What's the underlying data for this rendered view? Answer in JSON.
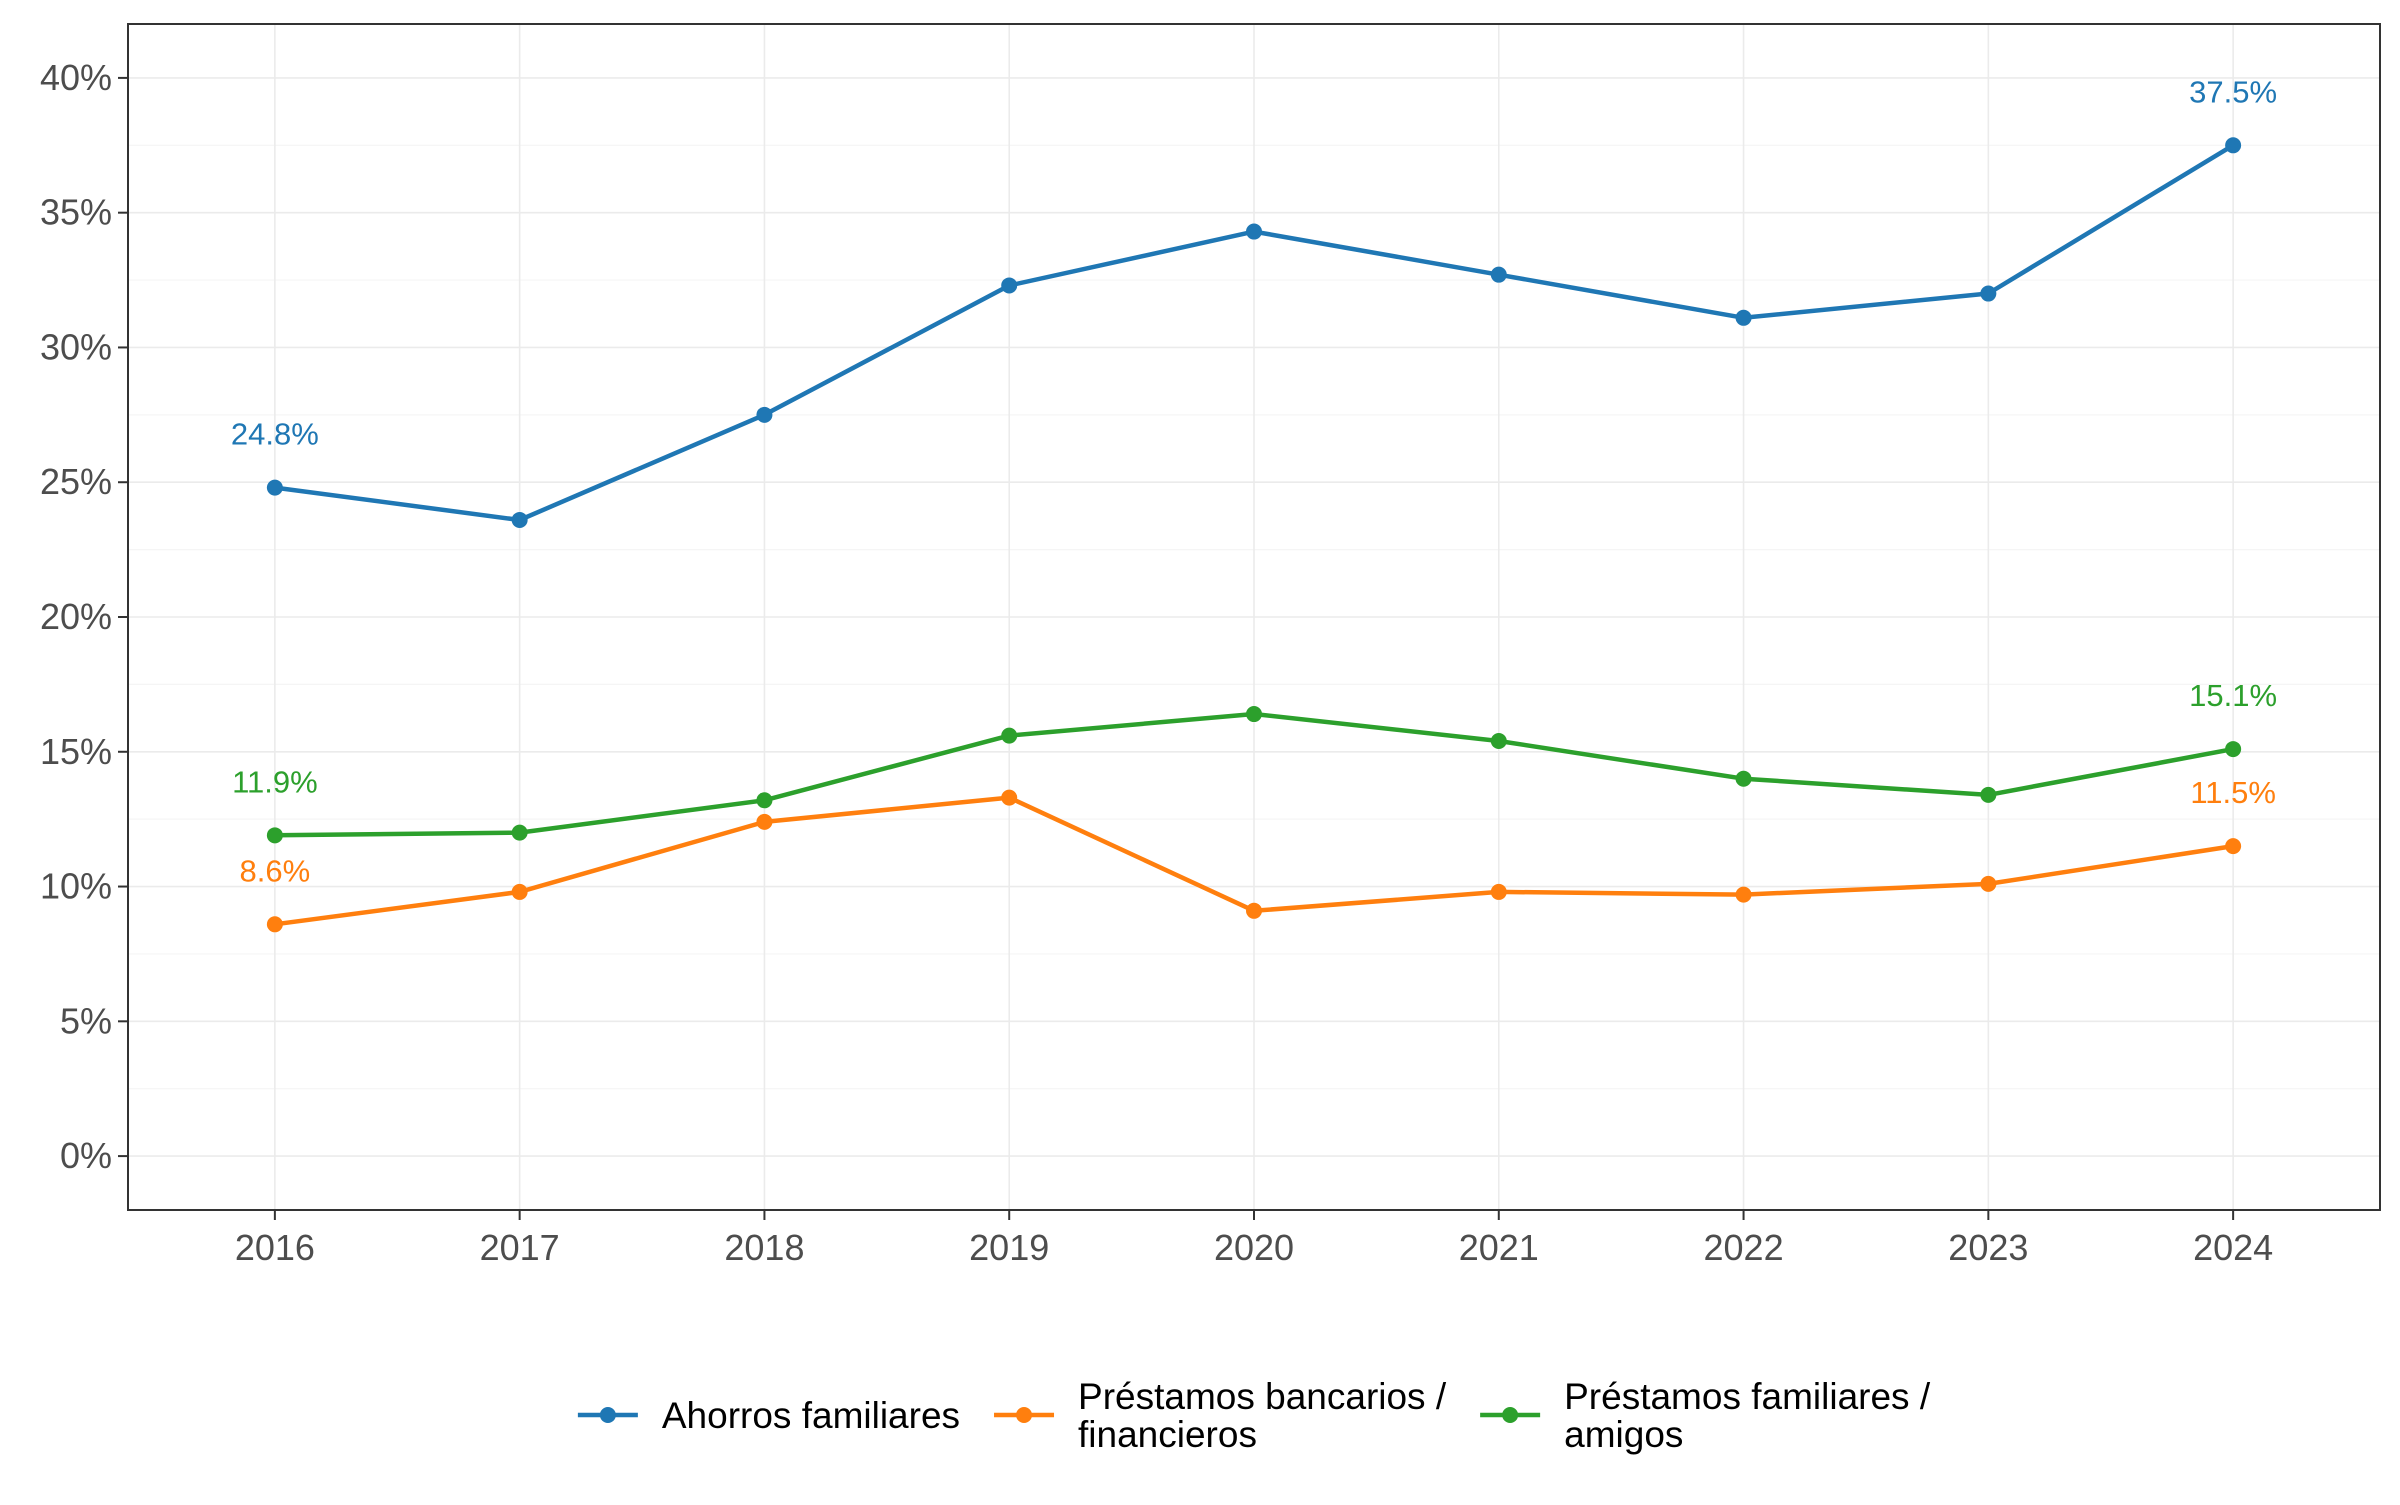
{
  "chart_data": {
    "type": "line",
    "title": "",
    "xlabel": "",
    "ylabel": "",
    "x": [
      2016,
      2017,
      2018,
      2019,
      2020,
      2021,
      2022,
      2023,
      2024
    ],
    "x_tick_labels": [
      "2016",
      "2017",
      "2018",
      "2019",
      "2020",
      "2021",
      "2022",
      "2023",
      "2024"
    ],
    "y_tick_values": [
      0,
      5,
      10,
      15,
      20,
      25,
      30,
      35,
      40
    ],
    "y_tick_labels": [
      "0%",
      "5%",
      "10%",
      "15%",
      "20%",
      "25%",
      "30%",
      "35%",
      "40%"
    ],
    "ylim": [
      -2,
      42
    ],
    "xlim": [
      2015.4,
      2024.6
    ],
    "grid": true,
    "legend_position": "bottom",
    "series": [
      {
        "name": "Ahorros familiares",
        "legend_lines": [
          "Ahorros familiares"
        ],
        "color": "#1f77b4",
        "values": [
          24.8,
          23.6,
          27.5,
          32.3,
          34.3,
          32.7,
          31.1,
          32.0,
          37.5
        ],
        "labels": [
          {
            "x": 2016,
            "text": "24.8%"
          },
          {
            "x": 2024,
            "text": "37.5%"
          }
        ]
      },
      {
        "name": "Préstamos bancarios / financieros",
        "legend_lines": [
          "Préstamos bancarios /",
          "financieros"
        ],
        "color": "#ff7f0e",
        "values": [
          8.6,
          9.8,
          12.4,
          13.3,
          9.1,
          9.8,
          9.7,
          10.1,
          11.5
        ],
        "labels": [
          {
            "x": 2016,
            "text": "8.6%"
          },
          {
            "x": 2024,
            "text": "11.5%"
          }
        ]
      },
      {
        "name": "Préstamos familiares / amigos",
        "legend_lines": [
          "Préstamos familiares /",
          "amigos"
        ],
        "color": "#2ca02c",
        "values": [
          11.9,
          12.0,
          13.2,
          15.6,
          16.4,
          15.4,
          14.0,
          13.4,
          15.1
        ],
        "labels": [
          {
            "x": 2016,
            "text": "11.9%"
          },
          {
            "x": 2024,
            "text": "15.1%"
          }
        ]
      }
    ]
  }
}
